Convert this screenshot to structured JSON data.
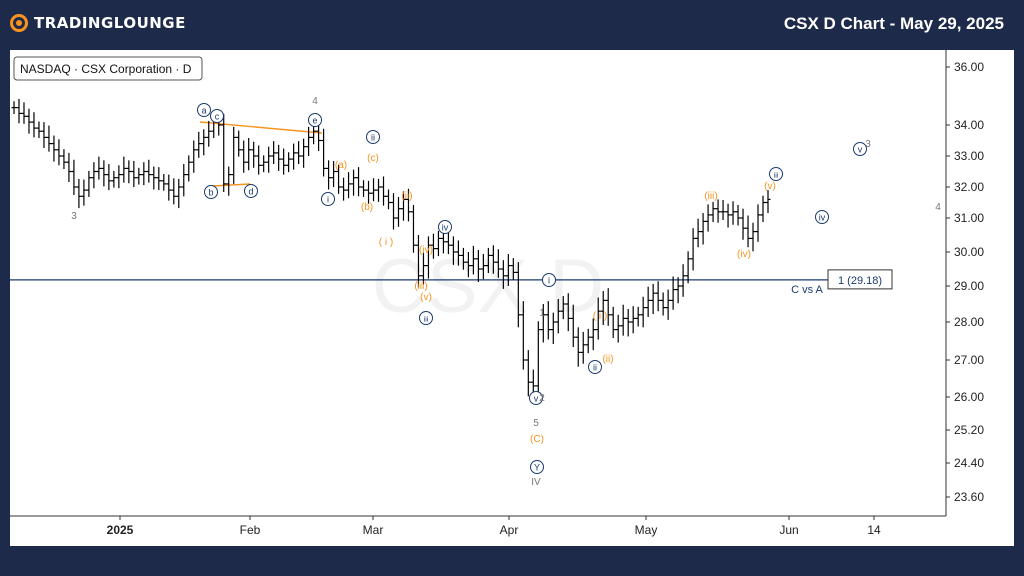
{
  "brand": {
    "logo_text": "TRADINGLOUNGE",
    "logo_icon": "tradinglounge-logo-icon"
  },
  "header": {
    "title": "CSX D Chart - May 29, 2025"
  },
  "symbol_label": "NASDAQ · CSX Corporation · D",
  "watermark": "CSX D",
  "colors": {
    "background": "#1e2a4a",
    "accent": "#f7931e",
    "label_blue": "#1a3a6e",
    "label_grey": "#777777",
    "bars": "#000000"
  },
  "chart_data": {
    "type": "ohlc",
    "y_ticks": [
      "36.00",
      "34.00",
      "33.00",
      "32.00",
      "31.00",
      "30.00",
      "29.00",
      "28.00",
      "27.00",
      "26.00",
      "25.20",
      "24.40",
      "23.60"
    ],
    "x_ticks": [
      "2025",
      "Feb",
      "Mar",
      "Apr",
      "May",
      "Jun",
      "14"
    ],
    "ylim": [
      23.2,
      36.6
    ],
    "y_scale": "log",
    "price_line": {
      "value": 29.18,
      "label": "1 (29.18)",
      "annotation": "C vs A"
    },
    "series_close": [
      34.6,
      34.4,
      34.3,
      34.1,
      33.9,
      33.8,
      33.6,
      33.4,
      33.2,
      33.0,
      32.8,
      32.5,
      32.0,
      31.7,
      31.9,
      32.3,
      32.5,
      32.6,
      32.4,
      32.2,
      32.3,
      32.4,
      32.6,
      32.5,
      32.3,
      32.4,
      32.5,
      32.4,
      32.3,
      32.2,
      32.1,
      31.9,
      31.7,
      32.0,
      32.4,
      32.8,
      33.2,
      33.4,
      33.6,
      33.8,
      34.2,
      34.0,
      32.1,
      32.4,
      33.6,
      33.2,
      32.8,
      33.2,
      33.0,
      32.7,
      32.8,
      33.0,
      33.1,
      32.9,
      32.7,
      32.9,
      33.1,
      33.0,
      33.3,
      33.6,
      33.8,
      33.5,
      32.6,
      32.3,
      32.5,
      32.0,
      31.9,
      32.1,
      32.3,
      32.0,
      31.9,
      31.8,
      31.9,
      32.0,
      31.7,
      31.5,
      31.0,
      31.3,
      31.6,
      31.2,
      30.2,
      29.3,
      29.6,
      30.2,
      30.1,
      30.4,
      30.3,
      30.2,
      30.0,
      29.9,
      29.7,
      29.6,
      29.8,
      29.5,
      29.6,
      29.9,
      29.7,
      29.5,
      29.3,
      29.6,
      29.4,
      28.2,
      27.0,
      26.4,
      26.3,
      27.8,
      28.2,
      27.8,
      28.0,
      28.3,
      28.5,
      28.1,
      27.6,
      27.2,
      27.4,
      27.6,
      27.8,
      28.3,
      28.6,
      28.2,
      27.8,
      27.9,
      28.1,
      28.0,
      28.1,
      28.2,
      28.4,
      28.6,
      28.8,
      28.6,
      28.4,
      28.6,
      28.9,
      29.0,
      29.3,
      29.8,
      30.4,
      30.6,
      30.9,
      31.1,
      31.3,
      31.2,
      31.2,
      31.1,
      31.2,
      31.0,
      30.7,
      30.4,
      30.6,
      31.1,
      31.5,
      31.6
    ],
    "wave_labels": [
      {
        "text": "a",
        "style": "circle"
      },
      {
        "text": "c",
        "style": "circle"
      },
      {
        "text": "b",
        "style": "circle"
      },
      {
        "text": "d",
        "style": "circle"
      },
      {
        "text": "e",
        "style": "circle"
      },
      {
        "text": "i",
        "style": "circle"
      },
      {
        "text": "ii",
        "style": "circle"
      },
      {
        "text": "iii",
        "style": "circle"
      },
      {
        "text": "iv",
        "style": "circle"
      },
      {
        "text": "i",
        "style": "circle"
      },
      {
        "text": "v",
        "style": "circle"
      },
      {
        "text": "Y",
        "style": "circle"
      },
      {
        "text": "ii",
        "style": "circle"
      },
      {
        "text": "iii",
        "style": "circle"
      },
      {
        "text": "iv",
        "style": "circle"
      },
      {
        "text": "v",
        "style": "circle"
      },
      {
        "text": "(a)",
        "style": "orange"
      },
      {
        "text": "(c)",
        "style": "orange"
      },
      {
        "text": "(b)",
        "style": "orange"
      },
      {
        "text": "( i )",
        "style": "orange"
      },
      {
        "text": "(ii)",
        "style": "orange"
      },
      {
        "text": "(iv)",
        "style": "orange"
      },
      {
        "text": "(iii)",
        "style": "orange"
      },
      {
        "text": "(v)",
        "style": "orange"
      },
      {
        "text": "(C)",
        "style": "orange"
      },
      {
        "text": "( i )",
        "style": "orange"
      },
      {
        "text": "(ii)",
        "style": "orange"
      },
      {
        "text": "(iii)",
        "style": "orange"
      },
      {
        "text": "(iv)",
        "style": "orange"
      },
      {
        "text": "(v)",
        "style": "orange"
      },
      {
        "text": "3",
        "style": "grey"
      },
      {
        "text": "4",
        "style": "grey"
      },
      {
        "text": "1",
        "style": "grey"
      },
      {
        "text": "2",
        "style": "grey"
      },
      {
        "text": "5",
        "style": "grey"
      },
      {
        "text": "IV",
        "style": "grey"
      },
      {
        "text": "3",
        "style": "grey"
      },
      {
        "text": "4",
        "style": "grey"
      }
    ]
  }
}
